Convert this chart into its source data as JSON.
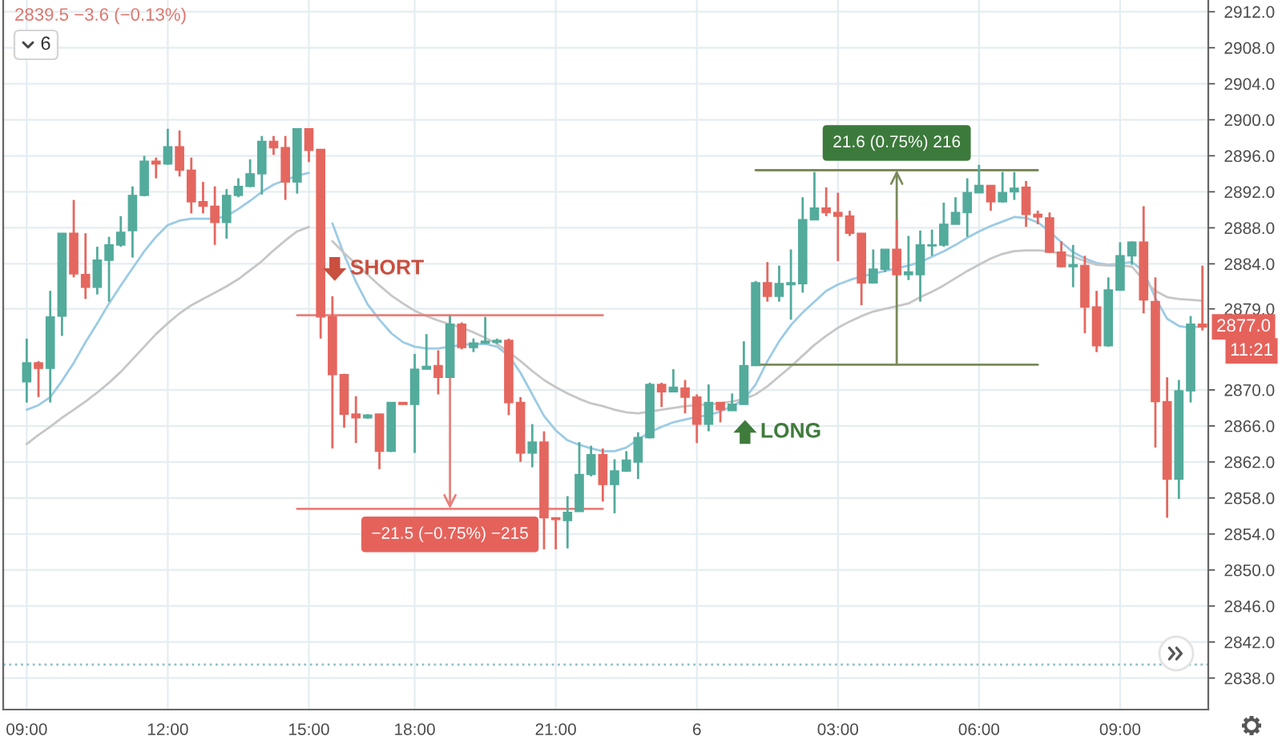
{
  "chart_data": {
    "type": "candlestick",
    "categories": [
      "09:00",
      null,
      null,
      null,
      null,
      null,
      null,
      null,
      null,
      null,
      null,
      null,
      "12:00",
      null,
      null,
      null,
      null,
      null,
      null,
      null,
      null,
      null,
      null,
      null,
      "15:00",
      null,
      null,
      null,
      null,
      null,
      null,
      null,
      null,
      "18:00",
      null,
      null,
      null,
      null,
      null,
      null,
      null,
      null,
      null,
      null,
      null,
      "21:00",
      null,
      null,
      null,
      null,
      null,
      null,
      null,
      null,
      null,
      null,
      null,
      "6",
      null,
      null,
      null,
      null,
      null,
      null,
      null,
      null,
      null,
      null,
      null,
      "03:00",
      null,
      null,
      null,
      null,
      null,
      null,
      null,
      null,
      null,
      null,
      null,
      "06:00",
      null,
      null,
      null,
      null,
      null,
      null,
      null,
      null,
      null,
      null,
      null,
      "09:00",
      null,
      null,
      null,
      null,
      null,
      null,
      null
    ],
    "ohlc": [
      [
        2870.9,
        2875.7,
        2868.6,
        2873.0
      ],
      [
        2873.0,
        2873.2,
        2869.2,
        2872.4
      ],
      [
        2872.4,
        2881.0,
        2868.6,
        2878.1
      ],
      [
        2878.2,
        2887.4,
        2876.0,
        2887.4
      ],
      [
        2887.4,
        2891.1,
        2882.5,
        2882.9
      ],
      [
        2882.8,
        2887.4,
        2880.1,
        2881.4
      ],
      [
        2881.4,
        2885.9,
        2880.6,
        2884.4
      ],
      [
        2884.4,
        2887.0,
        2879.8,
        2886.1
      ],
      [
        2886.1,
        2889.3,
        2885.9,
        2887.5
      ],
      [
        2887.7,
        2892.6,
        2884.7,
        2891.6
      ],
      [
        2891.6,
        2896.0,
        2891.5,
        2895.4
      ],
      [
        2895.4,
        2895.8,
        2893.5,
        2895.1
      ],
      [
        2895.1,
        2899.0,
        2895.0,
        2897.0
      ],
      [
        2897.0,
        2898.8,
        2893.7,
        2894.4
      ],
      [
        2894.4,
        2895.8,
        2889.6,
        2890.9
      ],
      [
        2890.9,
        2893.1,
        2889.6,
        2890.4
      ],
      [
        2890.4,
        2892.6,
        2886.1,
        2888.6
      ],
      [
        2888.6,
        2892.3,
        2886.8,
        2891.6
      ],
      [
        2891.6,
        2893.5,
        2891.4,
        2892.6
      ],
      [
        2892.6,
        2895.6,
        2892.5,
        2894.0
      ],
      [
        2894.0,
        2898.2,
        2891.7,
        2897.6
      ],
      [
        2897.6,
        2898.2,
        2896.1,
        2896.9
      ],
      [
        2896.9,
        2898.2,
        2891.1,
        2893.1
      ],
      [
        2893.1,
        2899.0,
        2891.8,
        2899.0
      ],
      [
        2899.0,
        2899.0,
        2895.3,
        2896.6
      ],
      [
        2896.7,
        2896.7,
        2875.7,
        2878.1
      ],
      [
        2878.1,
        2880.4,
        2863.5,
        2871.7
      ],
      [
        2871.7,
        2871.8,
        2865.8,
        2867.3
      ],
      [
        2867.3,
        2869.3,
        2864.1,
        2866.9
      ],
      [
        2866.9,
        2867.3,
        2866.8,
        2867.2
      ],
      [
        2867.3,
        2867.3,
        2861.2,
        2863.2
      ],
      [
        2863.2,
        2868.6,
        2863.1,
        2868.6
      ],
      [
        2868.6,
        2868.6,
        2868.4,
        2868.4
      ],
      [
        2868.4,
        2874.0,
        2863.0,
        2872.3
      ],
      [
        2872.3,
        2876.2,
        2872.3,
        2872.6
      ],
      [
        2872.7,
        2874.4,
        2869.5,
        2871.4
      ],
      [
        2871.4,
        2878.2,
        2871.4,
        2877.3
      ],
      [
        2877.3,
        2877.5,
        2874.5,
        2874.7
      ],
      [
        2874.7,
        2875.7,
        2874.2,
        2875.2
      ],
      [
        2875.2,
        2878.1,
        2875.1,
        2875.4
      ],
      [
        2875.3,
        2875.7,
        2875.1,
        2875.5
      ],
      [
        2875.5,
        2875.7,
        2867.2,
        2868.6
      ],
      [
        2868.6,
        2869.2,
        2862.0,
        2863.0
      ],
      [
        2863.0,
        2866.2,
        2861.4,
        2864.2
      ],
      [
        2864.2,
        2865.4,
        2852.3,
        2855.8
      ],
      [
        2855.8,
        2855.8,
        2852.3,
        2855.6
      ],
      [
        2855.5,
        2858.2,
        2852.4,
        2856.4
      ],
      [
        2856.5,
        2864.2,
        2856.5,
        2860.6
      ],
      [
        2860.6,
        2863.8,
        2860.4,
        2862.8
      ],
      [
        2862.8,
        2863.5,
        2857.6,
        2859.5
      ],
      [
        2859.5,
        2862.3,
        2856.3,
        2861.0
      ],
      [
        2861.0,
        2863.2,
        2860.9,
        2862.2
      ],
      [
        2862.0,
        2865.3,
        2860.1,
        2864.7
      ],
      [
        2864.7,
        2870.8,
        2864.6,
        2870.6
      ],
      [
        2870.6,
        2870.8,
        2868.1,
        2869.8
      ],
      [
        2869.8,
        2872.3,
        2869.8,
        2870.3
      ],
      [
        2870.2,
        2871.1,
        2867.4,
        2869.2
      ],
      [
        2869.2,
        2869.5,
        2864.1,
        2866.2
      ],
      [
        2866.2,
        2870.6,
        2865.4,
        2868.6
      ],
      [
        2868.6,
        2868.6,
        2866.4,
        2867.8
      ],
      [
        2867.7,
        2869.6,
        2867.7,
        2868.4
      ],
      [
        2868.4,
        2875.4,
        2868.4,
        2872.7
      ],
      [
        2872.7,
        2882.1,
        2872.7,
        2881.9
      ],
      [
        2881.9,
        2884.2,
        2879.8,
        2880.4
      ],
      [
        2880.4,
        2883.8,
        2879.8,
        2881.8
      ],
      [
        2881.7,
        2885.6,
        2877.8,
        2881.9
      ],
      [
        2881.8,
        2891.4,
        2880.8,
        2888.9
      ],
      [
        2888.9,
        2894.2,
        2888.9,
        2890.2
      ],
      [
        2890.2,
        2892.5,
        2889.3,
        2889.7
      ],
      [
        2889.7,
        2891.9,
        2884.3,
        2889.3
      ],
      [
        2889.3,
        2889.9,
        2887.1,
        2887.4
      ],
      [
        2887.4,
        2887.4,
        2879.4,
        2881.9
      ],
      [
        2881.9,
        2885.6,
        2881.8,
        2883.4
      ],
      [
        2883.4,
        2885.6,
        2883.1,
        2885.6
      ],
      [
        2885.6,
        2888.9,
        2882.8,
        2882.8
      ],
      [
        2882.8,
        2887.1,
        2882.2,
        2883.1
      ],
      [
        2882.8,
        2887.7,
        2879.8,
        2886.1
      ],
      [
        2886.0,
        2887.8,
        2884.9,
        2886.1
      ],
      [
        2886.1,
        2890.8,
        2885.9,
        2888.4
      ],
      [
        2888.4,
        2891.4,
        2888.4,
        2889.7
      ],
      [
        2889.7,
        2893.5,
        2887.0,
        2891.9
      ],
      [
        2891.9,
        2895.0,
        2891.9,
        2892.7
      ],
      [
        2892.7,
        2892.7,
        2889.9,
        2890.9
      ],
      [
        2890.9,
        2894.2,
        2890.8,
        2891.9
      ],
      [
        2892.0,
        2894.2,
        2891.1,
        2892.4
      ],
      [
        2892.5,
        2893.2,
        2888.1,
        2889.5
      ],
      [
        2889.5,
        2889.9,
        2888.4,
        2889.2
      ],
      [
        2889.1,
        2889.7,
        2885.2,
        2885.3
      ],
      [
        2885.3,
        2886.5,
        2883.6,
        2883.7
      ],
      [
        2883.7,
        2886.1,
        2881.4,
        2883.9
      ],
      [
        2883.8,
        2884.9,
        2876.3,
        2879.2
      ],
      [
        2879.2,
        2881.0,
        2874.2,
        2874.9
      ],
      [
        2874.9,
        2882.5,
        2874.8,
        2881.1
      ],
      [
        2881.1,
        2886.4,
        2881.0,
        2884.9
      ],
      [
        2884.9,
        2886.5,
        2883.9,
        2886.4
      ],
      [
        2886.4,
        2890.4,
        2878.5,
        2880.0
      ],
      [
        2879.8,
        2882.5,
        2863.6,
        2868.7
      ],
      [
        2868.7,
        2871.4,
        2855.8,
        2860.1
      ],
      [
        2860.1,
        2871.1,
        2857.9,
        2869.9
      ],
      [
        2869.9,
        2878.2,
        2868.6,
        2877.3
      ],
      [
        2877.3,
        2883.8,
        2876.6,
        2877.0
      ]
    ],
    "colors": [
      "#53ab9c",
      "#e4675f",
      "#53ab9c",
      "#53ab9c",
      "#e4675f",
      "#e4675f",
      "#53ab9c",
      "#53ab9c",
      "#53ab9c",
      "#53ab9c",
      "#53ab9c",
      "#e4675f",
      "#53ab9c",
      "#e4675f",
      "#e4675f",
      "#e4675f",
      "#e4675f",
      "#53ab9c",
      "#53ab9c",
      "#53ab9c",
      "#53ab9c",
      "#e4675f",
      "#e4675f",
      "#53ab9c",
      "#e4675f",
      "#e4675f",
      "#e4675f",
      "#e4675f",
      "#e4675f",
      "#53ab9c",
      "#e4675f",
      "#53ab9c",
      "#e4675f",
      "#53ab9c",
      "#53ab9c",
      "#e4675f",
      "#53ab9c",
      "#e4675f",
      "#53ab9c",
      "#53ab9c",
      "#53ab9c",
      "#e4675f",
      "#e4675f",
      "#53ab9c",
      "#e4675f",
      "#e4675f",
      "#53ab9c",
      "#53ab9c",
      "#53ab9c",
      "#e4675f",
      "#53ab9c",
      "#53ab9c",
      "#53ab9c",
      "#53ab9c",
      "#e4675f",
      "#53ab9c",
      "#e4675f",
      "#e4675f",
      "#53ab9c",
      "#e4675f",
      "#53ab9c",
      "#53ab9c",
      "#53ab9c",
      "#e4675f",
      "#53ab9c",
      "#53ab9c",
      "#53ab9c",
      "#53ab9c",
      "#e4675f",
      "#e4675f",
      "#e4675f",
      "#e4675f",
      "#53ab9c",
      "#53ab9c",
      "#e4675f",
      "#53ab9c",
      "#53ab9c",
      "#53ab9c",
      "#53ab9c",
      "#53ab9c",
      "#53ab9c",
      "#53ab9c",
      "#e4675f",
      "#53ab9c",
      "#53ab9c",
      "#e4675f",
      "#e4675f",
      "#e4675f",
      "#e4675f",
      "#53ab9c",
      "#e4675f",
      "#e4675f",
      "#53ab9c",
      "#53ab9c",
      "#53ab9c",
      "#e4675f",
      "#e4675f",
      "#e4675f",
      "#53ab9c",
      "#53ab9c",
      "#e4675f"
    ],
    "series": [
      {
        "type": "line",
        "color": "#9ccbe4",
        "values": [
          2867.8,
          2868.3,
          2869.2,
          2871.0,
          2873.0,
          2875.3,
          2877.4,
          2879.6,
          2881.6,
          2883.5,
          2885.4,
          2887.0,
          2888.3,
          2888.8,
          2889.0,
          2889.0,
          2889.0,
          2889.3,
          2890.1,
          2891.0,
          2892.0,
          2892.8,
          2893.3,
          2893.8,
          2894.1,
          null,
          2888.5,
          2885.0,
          2882.0,
          2879.5,
          2877.8,
          2876.3,
          2875.3,
          2874.8,
          2874.6,
          2874.6,
          2874.8,
          2875.0,
          2875.1,
          2875.1,
          2874.8,
          2873.8,
          2871.9,
          2869.5,
          2867.1,
          2865.5,
          2864.4,
          2863.9,
          2863.5,
          2863.2,
          2863.2,
          2863.6,
          2864.5,
          2865.3,
          2865.9,
          2866.4,
          2866.7,
          2867.0,
          2867.2,
          2867.6,
          2868.2,
          2868.9,
          2870.6,
          2873.2,
          2875.4,
          2877.2,
          2878.6,
          2879.8,
          2881.0,
          2881.7,
          2882.2,
          2882.6,
          2882.9,
          2883.2,
          2883.5,
          2883.8,
          2884.2,
          2884.8,
          2885.4,
          2886.1,
          2886.9,
          2887.6,
          2888.2,
          2888.7,
          2889.2,
          2889.1,
          2888.6,
          2887.6,
          2886.4,
          2885.3,
          2884.6,
          2884.1,
          2883.9,
          2884.0,
          2884.2,
          2883.2,
          2880.2,
          2877.9,
          2877.1,
          2876.9,
          2877.1
        ]
      },
      {
        "type": "line",
        "color": "#c6c6c6",
        "values": [
          2864.0,
          2865.0,
          2865.9,
          2866.9,
          2867.8,
          2868.7,
          2869.7,
          2870.8,
          2872.0,
          2873.4,
          2874.8,
          2876.2,
          2877.4,
          2878.5,
          2879.4,
          2880.1,
          2880.8,
          2881.5,
          2882.3,
          2883.3,
          2884.3,
          2885.5,
          2886.6,
          2887.6,
          2888.1,
          null,
          2886.5,
          2885.2,
          2884.0,
          2882.8,
          2881.6,
          2880.5,
          2879.6,
          2878.8,
          2878.2,
          2877.7,
          2877.3,
          2876.9,
          2876.4,
          2875.8,
          2875.1,
          2874.2,
          2873.2,
          2872.1,
          2871.1,
          2870.3,
          2869.6,
          2869.0,
          2868.5,
          2868.2,
          2867.8,
          2867.5,
          2867.4,
          2867.6,
          2867.8,
          2868.0,
          2868.2,
          2868.3,
          2868.4,
          2868.5,
          2868.7,
          2869.0,
          2869.5,
          2870.4,
          2871.5,
          2872.6,
          2873.8,
          2875.0,
          2876.0,
          2876.9,
          2877.6,
          2878.2,
          2878.7,
          2879.0,
          2879.3,
          2879.6,
          2880.3,
          2880.9,
          2881.6,
          2882.4,
          2883.2,
          2883.9,
          2884.6,
          2885.1,
          2885.4,
          2885.5,
          2885.5,
          2885.4,
          2885.1,
          2884.8,
          2884.3,
          2883.9,
          2883.8,
          2883.8,
          2883.7,
          2882.2,
          2881.0,
          2880.3,
          2880.1,
          2880.0,
          2879.9
        ]
      },
      {
        "type": "line",
        "color": "#e8807a",
        "values": [
          null,
          null,
          null,
          null,
          null,
          null,
          null,
          null,
          null,
          null,
          null,
          null,
          null,
          null,
          null,
          null,
          null,
          null,
          null,
          null,
          null,
          null,
          null,
          2878.3,
          2878.3,
          2878.3,
          2878.3,
          2878.3,
          2878.3,
          2878.3,
          2878.3,
          2878.3,
          2878.3,
          2878.3,
          2878.3,
          2878.3,
          2878.3,
          2878.3,
          2878.3,
          2878.3,
          2878.3,
          2878.3,
          2878.3,
          2878.3,
          2878.3,
          2878.3,
          2878.3,
          2878.3,
          2878.3,
          2878.3,
          null,
          null,
          null,
          null,
          null,
          null,
          null,
          null,
          null,
          null,
          null,
          null,
          null,
          null,
          null,
          null,
          null,
          null,
          null,
          null,
          null,
          null,
          null,
          null,
          null,
          null,
          null,
          null,
          null,
          null,
          null,
          null,
          null,
          null,
          null,
          null,
          null,
          null,
          null,
          null,
          null,
          null,
          null,
          null,
          null,
          null,
          null,
          null,
          null,
          null,
          null
        ]
      },
      {
        "type": "line",
        "color": "#e8807a",
        "values": [
          null,
          null,
          null,
          null,
          null,
          null,
          null,
          null,
          null,
          null,
          null,
          null,
          null,
          null,
          null,
          null,
          null,
          null,
          null,
          null,
          null,
          null,
          null,
          2856.8,
          2856.8,
          2856.8,
          2856.8,
          2856.8,
          2856.8,
          2856.8,
          2856.8,
          2856.8,
          2856.8,
          2856.8,
          2856.8,
          2856.8,
          2856.8,
          2856.8,
          2856.8,
          2856.8,
          2856.8,
          2856.8,
          2856.8,
          2856.8,
          2856.8,
          2856.8,
          2856.8,
          2856.8,
          2856.8,
          2856.8,
          null,
          null,
          null,
          null,
          null,
          null,
          null,
          null,
          null,
          null,
          null,
          null,
          null,
          null,
          null,
          null,
          null,
          null,
          null,
          null,
          null,
          null,
          null,
          null,
          null,
          null,
          null,
          null,
          null,
          null,
          null,
          null,
          null,
          null,
          null,
          null,
          null,
          null,
          null,
          null,
          null,
          null,
          null,
          null,
          null,
          null,
          null,
          null,
          null,
          null,
          null
        ]
      },
      {
        "type": "line",
        "color": "#7a8a5a",
        "values": [
          null,
          null,
          null,
          null,
          null,
          null,
          null,
          null,
          null,
          null,
          null,
          null,
          null,
          null,
          null,
          null,
          null,
          null,
          null,
          null,
          null,
          null,
          null,
          null,
          null,
          null,
          null,
          null,
          null,
          null,
          null,
          null,
          null,
          null,
          null,
          null,
          null,
          null,
          null,
          null,
          null,
          null,
          null,
          null,
          null,
          null,
          null,
          null,
          null,
          null,
          null,
          null,
          null,
          null,
          null,
          null,
          null,
          null,
          null,
          null,
          null,
          null,
          2894.4,
          2894.4,
          2894.4,
          2894.4,
          2894.4,
          2894.4,
          2894.4,
          2894.4,
          2894.4,
          2894.4,
          2894.4,
          2894.4,
          2894.4,
          2894.4,
          2894.4,
          2894.4,
          2894.4,
          2894.4,
          2894.4,
          2894.4,
          2894.4,
          2894.4,
          2894.4,
          2894.4,
          2894.4,
          null,
          null,
          null,
          null,
          null,
          null,
          null,
          null,
          null,
          null,
          null,
          null,
          null,
          null
        ]
      },
      {
        "type": "line",
        "color": "#7a8a5a",
        "values": [
          null,
          null,
          null,
          null,
          null,
          null,
          null,
          null,
          null,
          null,
          null,
          null,
          null,
          null,
          null,
          null,
          null,
          null,
          null,
          null,
          null,
          null,
          null,
          null,
          null,
          null,
          null,
          null,
          null,
          null,
          null,
          null,
          null,
          null,
          null,
          null,
          null,
          null,
          null,
          null,
          null,
          null,
          null,
          null,
          null,
          null,
          null,
          null,
          null,
          null,
          null,
          null,
          null,
          null,
          null,
          null,
          null,
          null,
          null,
          null,
          null,
          null,
          2872.8,
          2872.8,
          2872.8,
          2872.8,
          2872.8,
          2872.8,
          2872.8,
          2872.8,
          2872.8,
          2872.8,
          2872.8,
          2872.8,
          2872.8,
          2872.8,
          2872.8,
          2872.8,
          2872.8,
          2872.8,
          2872.8,
          2872.8,
          2872.8,
          2872.8,
          2872.8,
          2872.8,
          2872.8,
          null,
          null,
          null,
          null,
          null,
          null,
          null,
          null,
          null,
          null,
          null,
          null,
          null,
          null
        ]
      }
    ],
    "ylim": [
      2834.5,
      2913.3
    ],
    "yticks": [
      {
        "value": 2838,
        "label": "2838.0"
      },
      {
        "value": 2842,
        "label": "2842.0"
      },
      {
        "value": 2846,
        "label": "2846.0"
      },
      {
        "value": 2850,
        "label": "2850.0"
      },
      {
        "value": 2854,
        "label": "2854.0"
      },
      {
        "value": 2858,
        "label": "2858.0"
      },
      {
        "value": 2862,
        "label": "2862.0"
      },
      {
        "value": 2866,
        "label": "2866.0"
      },
      {
        "value": 2870,
        "label": "2870.0"
      },
      {
        "value": 2879,
        "label": "2879.0"
      },
      {
        "value": 2884,
        "label": "2884.0"
      },
      {
        "value": 2888,
        "label": "2888.0"
      },
      {
        "value": 2892,
        "label": "2892.0"
      },
      {
        "value": 2896,
        "label": "2896.0"
      },
      {
        "value": 2900,
        "label": "2900.0"
      },
      {
        "value": 2904,
        "label": "2904.0"
      },
      {
        "value": 2908,
        "label": "2908.0"
      },
      {
        "value": 2912,
        "label": "2912.0"
      }
    ],
    "grid": true,
    "ref_lines": [
      {
        "axis": "y",
        "value": 2839.5,
        "color": "#8fc3c6",
        "line_style": "dotted"
      }
    ],
    "annotations": [
      "2839.5 −3.6 (−0.13%)",
      "6",
      "SHORT",
      "LONG",
      {
        "text": "−21.5 (−0.75%) −215",
        "y": 2856.8
      },
      {
        "text": "21.6 (0.75%) 216",
        "y": 2894.4
      },
      "2877.0",
      "11:21"
    ]
  }
}
